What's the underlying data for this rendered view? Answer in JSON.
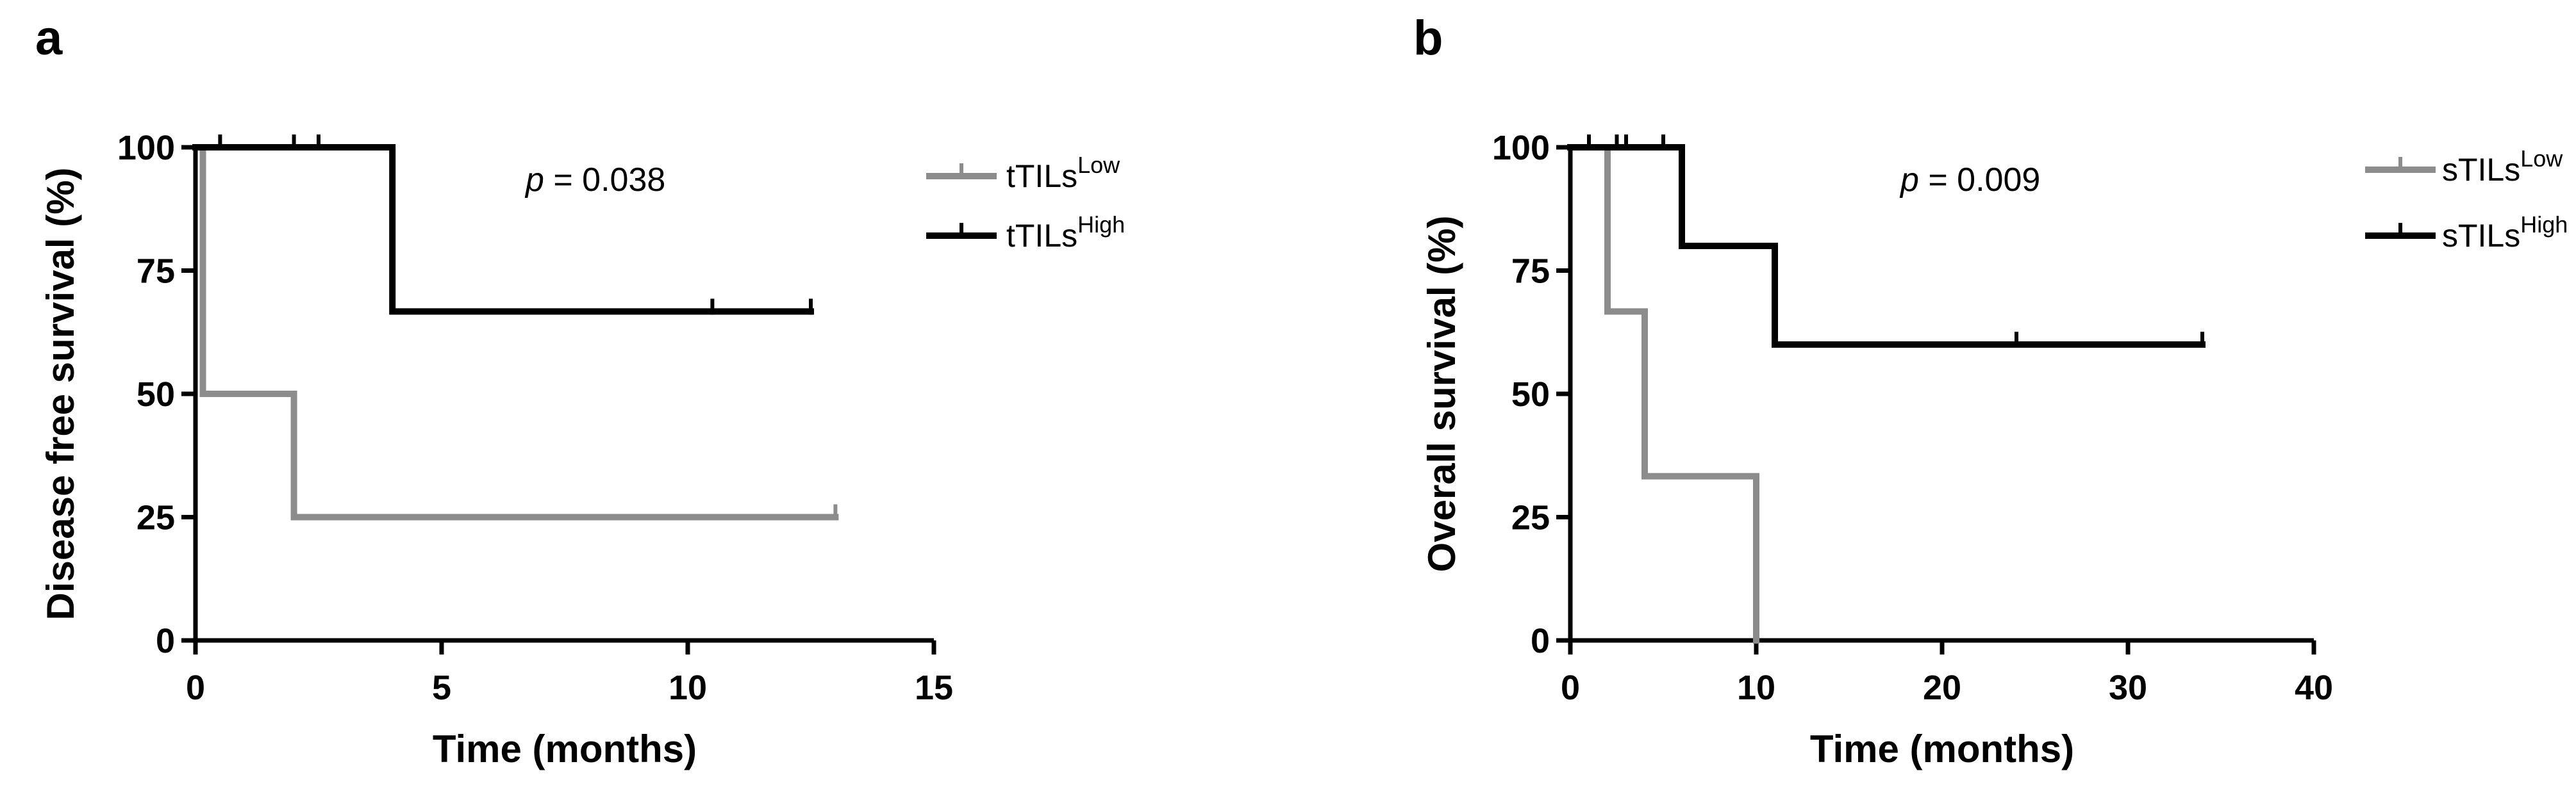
{
  "chart_data": [
    {
      "type": "line",
      "panel_label": "a",
      "xlabel": "Time (months)",
      "ylabel": "Disease free survival (%)",
      "xlim": [
        0,
        15
      ],
      "ylim": [
        0,
        100
      ],
      "xticks": [
        0,
        5,
        10,
        15
      ],
      "yticks": [
        0,
        25,
        50,
        75,
        100
      ],
      "grid": false,
      "legend_position": "top-right",
      "annotation": {
        "prefix": "p",
        "text": " = 0.038"
      },
      "series": [
        {
          "name": "tTILs",
          "name_sup": "Low",
          "color": "#8c8c8c",
          "steps": [
            [
              0,
              100
            ],
            [
              0.15,
              50
            ],
            [
              2,
              25
            ],
            [
              13,
              25
            ]
          ],
          "censor": [
            13
          ]
        },
        {
          "name": "tTILs",
          "name_sup": "High",
          "color": "#000000",
          "steps": [
            [
              0,
              100
            ],
            [
              4,
              66.7
            ],
            [
              12.5,
              66.7
            ]
          ],
          "censor": [
            0.5,
            2,
            2.5,
            10.5,
            12.5
          ]
        }
      ]
    },
    {
      "type": "line",
      "panel_label": "b",
      "xlabel": "Time (months)",
      "ylabel": "Overall survival (%)",
      "xlim": [
        0,
        40
      ],
      "ylim": [
        0,
        100
      ],
      "xticks": [
        0,
        10,
        20,
        30,
        40
      ],
      "yticks": [
        0,
        25,
        50,
        75,
        100
      ],
      "grid": false,
      "legend_position": "top-right",
      "annotation": {
        "prefix": "p",
        "text": " = 0.009"
      },
      "series": [
        {
          "name": "sTILs",
          "name_sup": "Low",
          "color": "#8c8c8c",
          "steps": [
            [
              0,
              100
            ],
            [
              2,
              66.7
            ],
            [
              4,
              33.3
            ],
            [
              10,
              0
            ]
          ],
          "censor": []
        },
        {
          "name": "sTILs",
          "name_sup": "High",
          "color": "#000000",
          "steps": [
            [
              0,
              100
            ],
            [
              6,
              80
            ],
            [
              11,
              60
            ],
            [
              34,
              60
            ]
          ],
          "censor": [
            1,
            2.5,
            3,
            5,
            24,
            34
          ]
        }
      ]
    }
  ]
}
